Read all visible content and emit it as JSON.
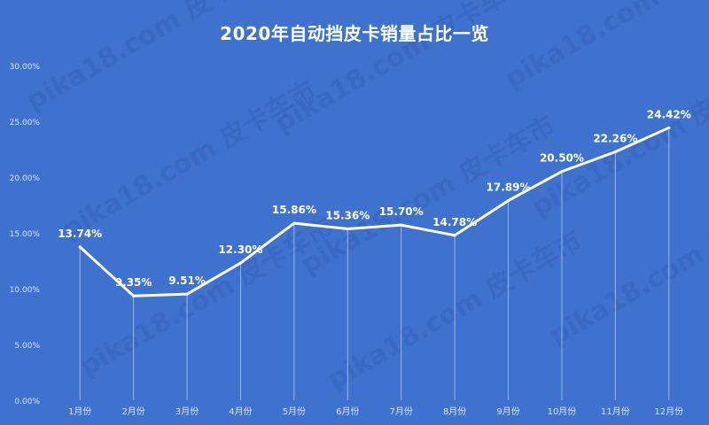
{
  "watermark": "pika18.com 皮卡车市",
  "chart_data": {
    "type": "line",
    "title": "2020年自动挡皮卡销量占比一览",
    "categories": [
      "1月份",
      "2月份",
      "3月份",
      "4月份",
      "5月份",
      "6月份",
      "7月份",
      "8月份",
      "9月份",
      "10月份",
      "11月份",
      "12月份"
    ],
    "values": [
      13.74,
      9.35,
      9.51,
      12.3,
      15.86,
      15.36,
      15.7,
      14.78,
      17.89,
      20.5,
      22.26,
      24.42
    ],
    "data_labels": [
      "13.74%",
      "9.35%",
      "9.51%",
      "12.30%",
      "15.86%",
      "15.36%",
      "15.70%",
      "14.78%",
      "17.89%",
      "20.50%",
      "22.26%",
      "24.42%"
    ],
    "y_ticks": [
      0,
      5,
      10,
      15,
      20,
      25,
      30
    ],
    "y_tick_labels": [
      "0.00%",
      "5.00%",
      "10.00%",
      "15.00%",
      "20.00%",
      "25.00%",
      "30.00%"
    ],
    "ylim": [
      0,
      30
    ],
    "grid": false,
    "drop_lines": true,
    "colors": {
      "background": "#3f72cf",
      "line": "#ffffff",
      "text": "#ffffff",
      "axis_text": "#dbe6fa",
      "drop_line": "#a9c3f0"
    }
  }
}
